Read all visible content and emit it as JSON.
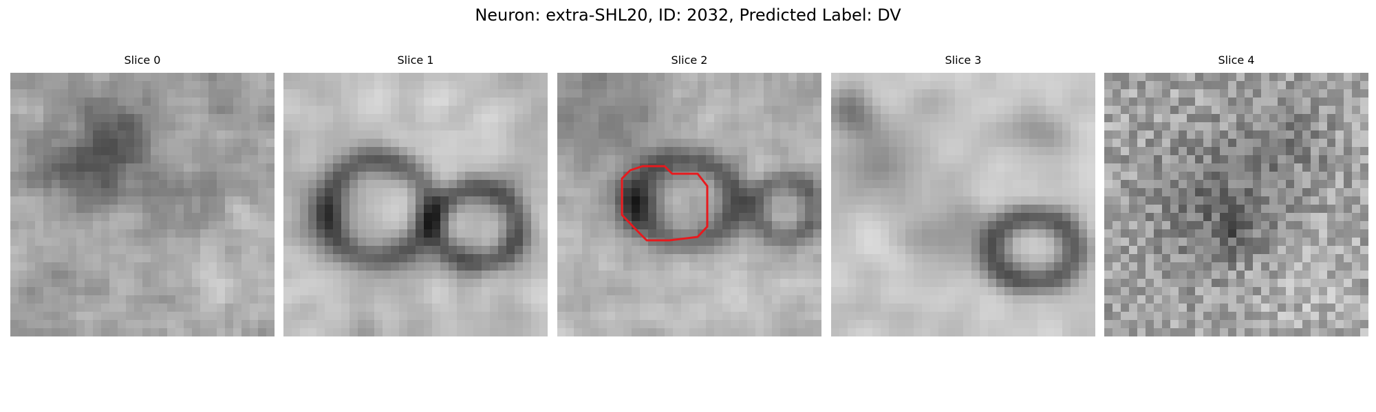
{
  "figure": {
    "title": "Neuron: extra-SHL20, ID: 2032, Predicted Label: DV"
  },
  "panels": [
    {
      "title": "Slice 0"
    },
    {
      "title": "Slice 1"
    },
    {
      "title": "Slice 2",
      "outline_color": "#e8191d"
    },
    {
      "title": "Slice 3"
    },
    {
      "title": "Slice 4"
    }
  ],
  "colors": {
    "outline": "#e8191d"
  }
}
